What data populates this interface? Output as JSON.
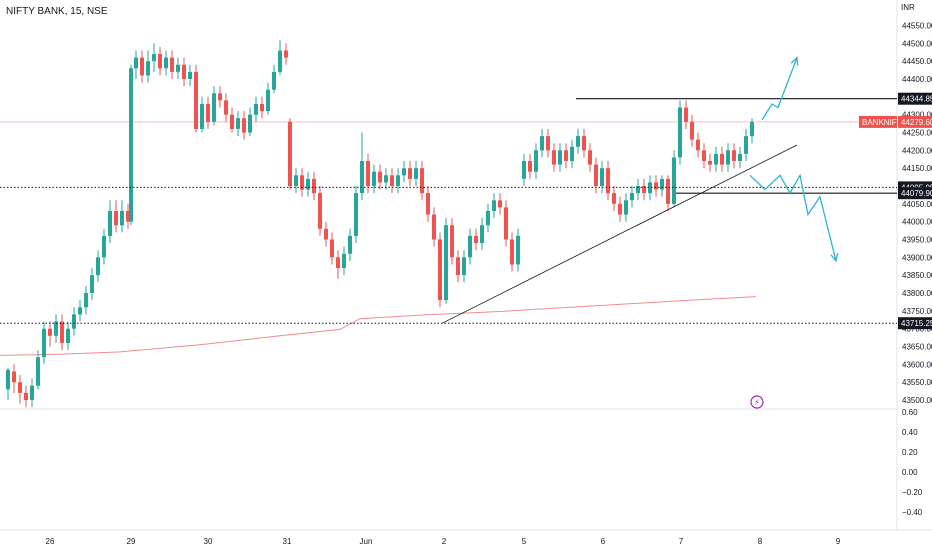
{
  "header": {
    "title": "NIFTY BANK, 15, NSE",
    "currency": "INR"
  },
  "colors": {
    "up": "#26a69a",
    "down": "#ef5350",
    "ma": "#f28b8b",
    "price_tag": "#ef5350",
    "arrow": "#2bb5d6",
    "line": "#131722"
  },
  "chart_data": {
    "type": "candlestick",
    "title": "NIFTY BANK, 15, NSE",
    "y_unit": "INR",
    "ylim": [
      43480,
      44580
    ],
    "y_ticks": [
      "44550.00",
      "44500.00",
      "44450.00",
      "44400.00",
      "44350.00",
      "44300.00",
      "44250.00",
      "44200.00",
      "44150.00",
      "44100.00",
      "44050.00",
      "44000.00",
      "43950.00",
      "43900.00",
      "43850.00",
      "43800.00",
      "43750.00",
      "43700.00",
      "43650.00",
      "43600.00",
      "43550.00",
      "43500.00"
    ],
    "x_ticks": [
      "26",
      "29",
      "30",
      "31",
      "Jun",
      "2",
      "5",
      "6",
      "7",
      "8",
      "9"
    ],
    "last_price": {
      "label": "BANKNIFTY",
      "value": "44279.60"
    },
    "levels": [
      {
        "value": "44344.85",
        "style": "solid"
      },
      {
        "value": "44095.95",
        "style": "dotted"
      },
      {
        "value": "44079.90",
        "style": "solid"
      },
      {
        "value": "43715.25",
        "style": "dotted"
      }
    ],
    "ma_series": [
      [
        0,
        43625
      ],
      [
        60,
        43628
      ],
      [
        120,
        43635
      ],
      [
        200,
        43655
      ],
      [
        280,
        43680
      ],
      [
        340,
        43698
      ],
      [
        360,
        43728
      ],
      [
        420,
        43738
      ],
      [
        500,
        43748
      ],
      [
        600,
        43765
      ],
      [
        680,
        43778
      ],
      [
        756,
        43790
      ]
    ],
    "trendline": [
      [
        442,
        43715
      ],
      [
        797,
        44215
      ]
    ],
    "projection_up": [
      [
        762,
        44285
      ],
      [
        772,
        44330
      ],
      [
        778,
        44320
      ],
      [
        797,
        44460
      ]
    ],
    "projection_down": [
      [
        750,
        44130
      ],
      [
        765,
        44090
      ],
      [
        780,
        44130
      ],
      [
        790,
        44080
      ],
      [
        800,
        44130
      ],
      [
        808,
        44020
      ],
      [
        820,
        44070
      ],
      [
        836,
        43890
      ]
    ],
    "candles": [
      [
        8,
        43530,
        43585,
        43500,
        43590
      ],
      [
        14,
        43580,
        43550,
        43520,
        43600
      ],
      [
        20,
        43550,
        43520,
        43490,
        43570
      ],
      [
        26,
        43520,
        43500,
        43480,
        43540
      ],
      [
        32,
        43500,
        43540,
        43480,
        43560
      ],
      [
        38,
        43540,
        43620,
        43530,
        43640
      ],
      [
        44,
        43620,
        43700,
        43600,
        43720
      ],
      [
        50,
        43700,
        43680,
        43650,
        43720
      ],
      [
        56,
        43680,
        43720,
        43660,
        43740
      ],
      [
        62,
        43720,
        43660,
        43640,
        43740
      ],
      [
        68,
        43660,
        43700,
        43640,
        43720
      ],
      [
        74,
        43700,
        43740,
        43680,
        43760
      ],
      [
        80,
        43740,
        43760,
        43720,
        43780
      ],
      [
        86,
        43760,
        43800,
        43740,
        43820
      ],
      [
        92,
        43800,
        43850,
        43780,
        43870
      ],
      [
        98,
        43850,
        43900,
        43830,
        43920
      ],
      [
        104,
        43900,
        43960,
        43880,
        43980
      ],
      [
        110,
        43960,
        44030,
        43940,
        44060
      ],
      [
        116,
        44030,
        43990,
        43970,
        44060
      ],
      [
        122,
        43990,
        44030,
        43970,
        44060
      ],
      [
        128,
        44030,
        44000,
        43980,
        44050
      ],
      [
        131,
        44000,
        44430,
        43990,
        44440
      ],
      [
        136,
        44430,
        44460,
        44400,
        44480
      ],
      [
        142,
        44460,
        44410,
        44390,
        44480
      ],
      [
        148,
        44410,
        44450,
        44390,
        44480
      ],
      [
        154,
        44450,
        44470,
        44420,
        44500
      ],
      [
        160,
        44470,
        44430,
        44410,
        44490
      ],
      [
        166,
        44430,
        44460,
        44410,
        44480
      ],
      [
        172,
        44460,
        44420,
        44400,
        44480
      ],
      [
        178,
        44420,
        44440,
        44400,
        44460
      ],
      [
        184,
        44440,
        44400,
        44380,
        44460
      ],
      [
        190,
        44400,
        44420,
        44380,
        44440
      ],
      [
        196,
        44420,
        44260,
        44250,
        44440
      ],
      [
        202,
        44260,
        44330,
        44250,
        44350
      ],
      [
        208,
        44330,
        44280,
        44260,
        44350
      ],
      [
        214,
        44280,
        44360,
        44270,
        44380
      ],
      [
        220,
        44360,
        44340,
        44320,
        44380
      ],
      [
        226,
        44340,
        44300,
        44280,
        44360
      ],
      [
        232,
        44300,
        44260,
        44250,
        44320
      ],
      [
        238,
        44260,
        44290,
        44240,
        44310
      ],
      [
        244,
        44290,
        44250,
        44230,
        44310
      ],
      [
        250,
        44250,
        44300,
        44240,
        44320
      ],
      [
        256,
        44300,
        44330,
        44280,
        44350
      ],
      [
        262,
        44330,
        44310,
        44290,
        44350
      ],
      [
        268,
        44310,
        44370,
        44300,
        44390
      ],
      [
        274,
        44370,
        44420,
        44360,
        44440
      ],
      [
        280,
        44420,
        44480,
        44410,
        44510
      ],
      [
        286,
        44480,
        44460,
        44440,
        44500
      ],
      [
        290,
        44280,
        44100,
        44090,
        44290
      ],
      [
        296,
        44100,
        44130,
        44080,
        44150
      ],
      [
        302,
        44130,
        44090,
        44070,
        44150
      ],
      [
        308,
        44090,
        44120,
        44070,
        44140
      ],
      [
        314,
        44120,
        44080,
        44060,
        44140
      ],
      [
        320,
        44080,
        43980,
        43960,
        44100
      ],
      [
        326,
        43980,
        43950,
        43930,
        44000
      ],
      [
        332,
        43950,
        43900,
        43880,
        43970
      ],
      [
        338,
        43900,
        43870,
        43840,
        43920
      ],
      [
        344,
        43870,
        43910,
        43850,
        43930
      ],
      [
        350,
        43910,
        43960,
        43890,
        43980
      ],
      [
        356,
        43960,
        44080,
        43940,
        44100
      ],
      [
        362,
        44080,
        44170,
        44060,
        44250
      ],
      [
        368,
        44170,
        44100,
        44080,
        44190
      ],
      [
        374,
        44100,
        44140,
        44080,
        44160
      ],
      [
        380,
        44140,
        44110,
        44090,
        44160
      ],
      [
        386,
        44110,
        44130,
        44090,
        44150
      ],
      [
        392,
        44130,
        44100,
        44080,
        44150
      ],
      [
        398,
        44100,
        44130,
        44080,
        44150
      ],
      [
        404,
        44130,
        44150,
        44110,
        44170
      ],
      [
        410,
        44150,
        44120,
        44100,
        44170
      ],
      [
        416,
        44120,
        44150,
        44100,
        44170
      ],
      [
        422,
        44150,
        44080,
        44060,
        44170
      ],
      [
        428,
        44080,
        44020,
        44000,
        44100
      ],
      [
        434,
        44020,
        43950,
        43930,
        44040
      ],
      [
        440,
        43950,
        43780,
        43760,
        43970
      ],
      [
        446,
        43780,
        43990,
        43770,
        44010
      ],
      [
        452,
        43990,
        43900,
        43880,
        44010
      ],
      [
        458,
        43900,
        43850,
        43830,
        43920
      ],
      [
        464,
        43850,
        43900,
        43830,
        43920
      ],
      [
        470,
        43900,
        43960,
        43880,
        43980
      ],
      [
        476,
        43960,
        43940,
        43920,
        43980
      ],
      [
        482,
        43940,
        43990,
        43920,
        44010
      ],
      [
        488,
        43990,
        44030,
        43970,
        44050
      ],
      [
        494,
        44030,
        44060,
        44010,
        44080
      ],
      [
        500,
        44060,
        44040,
        44020,
        44080
      ],
      [
        506,
        44040,
        43950,
        43930,
        44060
      ],
      [
        512,
        43950,
        43880,
        43860,
        43970
      ],
      [
        518,
        43880,
        43960,
        43860,
        43980
      ],
      [
        524,
        44120,
        44170,
        44100,
        44190
      ],
      [
        530,
        44170,
        44140,
        44120,
        44190
      ],
      [
        536,
        44140,
        44200,
        44120,
        44220
      ],
      [
        542,
        44200,
        44240,
        44180,
        44260
      ],
      [
        548,
        44240,
        44200,
        44180,
        44260
      ],
      [
        554,
        44200,
        44160,
        44140,
        44220
      ],
      [
        560,
        44160,
        44200,
        44140,
        44220
      ],
      [
        566,
        44200,
        44170,
        44150,
        44220
      ],
      [
        572,
        44170,
        44210,
        44150,
        44230
      ],
      [
        578,
        44210,
        44240,
        44190,
        44260
      ],
      [
        584,
        44240,
        44200,
        44180,
        44260
      ],
      [
        590,
        44200,
        44160,
        44140,
        44220
      ],
      [
        596,
        44160,
        44100,
        44080,
        44180
      ],
      [
        602,
        44100,
        44150,
        44080,
        44170
      ],
      [
        608,
        44150,
        44080,
        44060,
        44170
      ],
      [
        614,
        44080,
        44050,
        44030,
        44100
      ],
      [
        620,
        44050,
        44020,
        44000,
        44070
      ],
      [
        626,
        44020,
        44060,
        44000,
        44080
      ],
      [
        632,
        44060,
        44080,
        44040,
        44100
      ],
      [
        638,
        44080,
        44100,
        44060,
        44120
      ],
      [
        644,
        44100,
        44080,
        44060,
        44120
      ],
      [
        650,
        44080,
        44110,
        44060,
        44130
      ],
      [
        656,
        44110,
        44090,
        44070,
        44130
      ],
      [
        662,
        44090,
        44120,
        44070,
        44130
      ],
      [
        668,
        44120,
        44050,
        44030,
        44130
      ],
      [
        674,
        44050,
        44180,
        44040,
        44200
      ],
      [
        680,
        44180,
        44320,
        44160,
        44340
      ],
      [
        686,
        44320,
        44280,
        44260,
        44340
      ],
      [
        692,
        44280,
        44230,
        44210,
        44300
      ],
      [
        698,
        44230,
        44200,
        44180,
        44250
      ],
      [
        704,
        44200,
        44170,
        44150,
        44220
      ],
      [
        710,
        44170,
        44160,
        44140,
        44190
      ],
      [
        716,
        44160,
        44190,
        44140,
        44210
      ],
      [
        722,
        44190,
        44160,
        44140,
        44210
      ],
      [
        728,
        44160,
        44200,
        44140,
        44220
      ],
      [
        734,
        44200,
        44170,
        44150,
        44220
      ],
      [
        740,
        44170,
        44190,
        44150,
        44210
      ],
      [
        746,
        44190,
        44240,
        44170,
        44260
      ],
      [
        752,
        44240,
        44280,
        44220,
        44290
      ]
    ],
    "indicator": {
      "ylim": [
        -0.55,
        0.62
      ],
      "ticks": [
        "0.60",
        "0.40",
        "0.20",
        "0.00",
        "−0.20",
        "−0.40"
      ],
      "badge": "⚡"
    }
  }
}
